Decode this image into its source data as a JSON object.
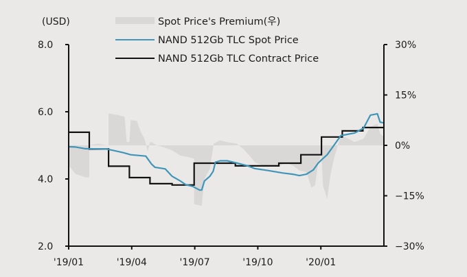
{
  "chart_data": {
    "type": "line",
    "title": "",
    "y_unit_label": "(USD)",
    "x_unit": "months since Jan 2019",
    "x_ticks": [
      {
        "x": 0,
        "label": "'19/01"
      },
      {
        "x": 3,
        "label": "'19/04"
      },
      {
        "x": 6,
        "label": "'19/07"
      },
      {
        "x": 9,
        "label": "'19/10"
      },
      {
        "x": 12,
        "label": "'20/01"
      }
    ],
    "x_range": [
      0,
      15.0
    ],
    "y_left": {
      "range": [
        2.0,
        8.0
      ],
      "ticks": [
        {
          "v": 2.0,
          "label": "2.0"
        },
        {
          "v": 4.0,
          "label": "4.0"
        },
        {
          "v": 6.0,
          "label": "6.0"
        },
        {
          "v": 8.0,
          "label": "8.0"
        }
      ]
    },
    "y_right": {
      "range": [
        -30,
        30
      ],
      "ticks": [
        {
          "v": 30,
          "label": "30%"
        },
        {
          "v": 15,
          "label": "15%"
        },
        {
          "v": 0,
          "label": "0%"
        },
        {
          "v": -15,
          "label": "−15%"
        },
        {
          "v": -30,
          "label": "−30%"
        }
      ]
    },
    "legend": {
      "placement": "top-center",
      "entries": [
        {
          "key": "premium",
          "label": "Spot Price's Premium(우)",
          "kind": "area"
        },
        {
          "key": "spot",
          "label": "NAND 512Gb TLC Spot Price",
          "kind": "line"
        },
        {
          "key": "contract",
          "label": "NAND 512Gb TLC Contract Price",
          "kind": "line"
        }
      ]
    },
    "colors": {
      "background": "#ebe9e7",
      "premium": "#d9d8d7",
      "spot": "#3f95b8",
      "contract": "#111111",
      "axis": "#111111"
    },
    "series": [
      {
        "name": "NAND 512Gb TLC Spot Price",
        "key": "spot",
        "axis": "left",
        "points": [
          [
            0.0,
            4.96
          ],
          [
            0.33,
            4.95
          ],
          [
            0.79,
            4.9
          ],
          [
            1.8,
            4.89
          ],
          [
            2.13,
            4.85
          ],
          [
            2.62,
            4.78
          ],
          [
            2.95,
            4.72
          ],
          [
            3.67,
            4.68
          ],
          [
            3.93,
            4.45
          ],
          [
            4.1,
            4.35
          ],
          [
            4.59,
            4.3
          ],
          [
            4.92,
            4.08
          ],
          [
            5.31,
            3.94
          ],
          [
            5.57,
            3.83
          ],
          [
            5.9,
            3.78
          ],
          [
            6.23,
            3.67
          ],
          [
            6.33,
            3.67
          ],
          [
            6.46,
            3.94
          ],
          [
            6.72,
            4.08
          ],
          [
            6.88,
            4.23
          ],
          [
            6.98,
            4.5
          ],
          [
            7.21,
            4.54
          ],
          [
            7.54,
            4.54
          ],
          [
            8.03,
            4.47
          ],
          [
            8.52,
            4.39
          ],
          [
            8.85,
            4.31
          ],
          [
            9.51,
            4.25
          ],
          [
            10.16,
            4.18
          ],
          [
            10.66,
            4.14
          ],
          [
            10.98,
            4.1
          ],
          [
            11.31,
            4.14
          ],
          [
            11.64,
            4.27
          ],
          [
            11.87,
            4.47
          ],
          [
            12.07,
            4.59
          ],
          [
            12.3,
            4.72
          ],
          [
            12.62,
            5.0
          ],
          [
            12.95,
            5.29
          ],
          [
            13.61,
            5.37
          ],
          [
            14.03,
            5.51
          ],
          [
            14.36,
            5.9
          ],
          [
            14.69,
            5.94
          ],
          [
            14.82,
            5.69
          ],
          [
            15.0,
            5.67
          ]
        ]
      },
      {
        "name": "NAND 512Gb TLC Contract Price",
        "key": "contract",
        "axis": "left",
        "step": true,
        "steps": [
          {
            "from": 0.0,
            "to": 0.98,
            "v": 5.39
          },
          {
            "from": 0.98,
            "to": 1.9,
            "v": 4.89
          },
          {
            "from": 1.9,
            "to": 2.89,
            "v": 4.38
          },
          {
            "from": 2.89,
            "to": 3.87,
            "v": 4.04
          },
          {
            "from": 3.87,
            "to": 4.92,
            "v": 3.86
          },
          {
            "from": 4.92,
            "to": 5.97,
            "v": 3.82
          },
          {
            "from": 5.97,
            "to": 7.93,
            "v": 4.47
          },
          {
            "from": 7.93,
            "to": 10.0,
            "v": 4.39
          },
          {
            "from": 10.0,
            "to": 11.05,
            "v": 4.47
          },
          {
            "from": 11.05,
            "to": 12.03,
            "v": 4.72
          },
          {
            "from": 12.03,
            "to": 13.02,
            "v": 5.25
          },
          {
            "from": 13.02,
            "to": 14.0,
            "v": 5.43
          },
          {
            "from": 14.0,
            "to": 15.0,
            "v": 5.53
          }
        ]
      },
      {
        "name": "Spot Price's Premium",
        "key": "premium",
        "axis": "right",
        "unit": "%",
        "points": [
          [
            0.0,
            -6.0
          ],
          [
            0.33,
            -8.5
          ],
          [
            0.79,
            -9.5
          ],
          [
            0.98,
            -9.5
          ],
          [
            0.98,
            0.0
          ],
          [
            1.4,
            0.5
          ],
          [
            1.8,
            0.0
          ],
          [
            1.9,
            0.0
          ],
          [
            1.9,
            9.5
          ],
          [
            2.36,
            9.0
          ],
          [
            2.66,
            8.5
          ],
          [
            2.76,
            1.0
          ],
          [
            2.89,
            1.0
          ],
          [
            2.95,
            7.5
          ],
          [
            3.25,
            7.3
          ],
          [
            3.4,
            4.5
          ],
          [
            3.6,
            2.0
          ],
          [
            3.7,
            0.0
          ],
          [
            3.75,
            -2.0
          ],
          [
            3.87,
            1.0
          ],
          [
            3.93,
            1.0
          ],
          [
            4.2,
            0.0
          ],
          [
            4.5,
            -0.5
          ],
          [
            4.92,
            -1.5
          ],
          [
            5.3,
            -3.0
          ],
          [
            5.7,
            -3.5
          ],
          [
            5.97,
            -4.0
          ],
          [
            5.97,
            -17.5
          ],
          [
            6.33,
            -18.0
          ],
          [
            6.46,
            -10.0
          ],
          [
            6.72,
            -7.0
          ],
          [
            6.9,
            0.5
          ],
          [
            7.2,
            1.5
          ],
          [
            7.5,
            1.0
          ],
          [
            8.0,
            0.5
          ],
          [
            8.3,
            -1.0
          ],
          [
            8.6,
            -3.0
          ],
          [
            8.85,
            -5.0
          ],
          [
            9.2,
            -6.0
          ],
          [
            9.51,
            -6.0
          ],
          [
            10.0,
            -6.5
          ],
          [
            10.3,
            -5.0
          ],
          [
            10.66,
            -6.0
          ],
          [
            10.98,
            -7.5
          ],
          [
            11.31,
            -8.0
          ],
          [
            11.55,
            -12.5
          ],
          [
            11.72,
            -12.0
          ],
          [
            11.87,
            -5.5
          ],
          [
            12.03,
            -2.5
          ],
          [
            12.1,
            -12.0
          ],
          [
            12.3,
            -16.0
          ],
          [
            12.45,
            -9.0
          ],
          [
            12.62,
            -4.0
          ],
          [
            12.95,
            3.0
          ],
          [
            13.3,
            2.0
          ],
          [
            13.61,
            1.0
          ],
          [
            14.03,
            2.0
          ],
          [
            14.36,
            5.5
          ],
          [
            14.69,
            6.5
          ],
          [
            14.82,
            3.5
          ],
          [
            15.0,
            2.5
          ]
        ]
      }
    ]
  }
}
